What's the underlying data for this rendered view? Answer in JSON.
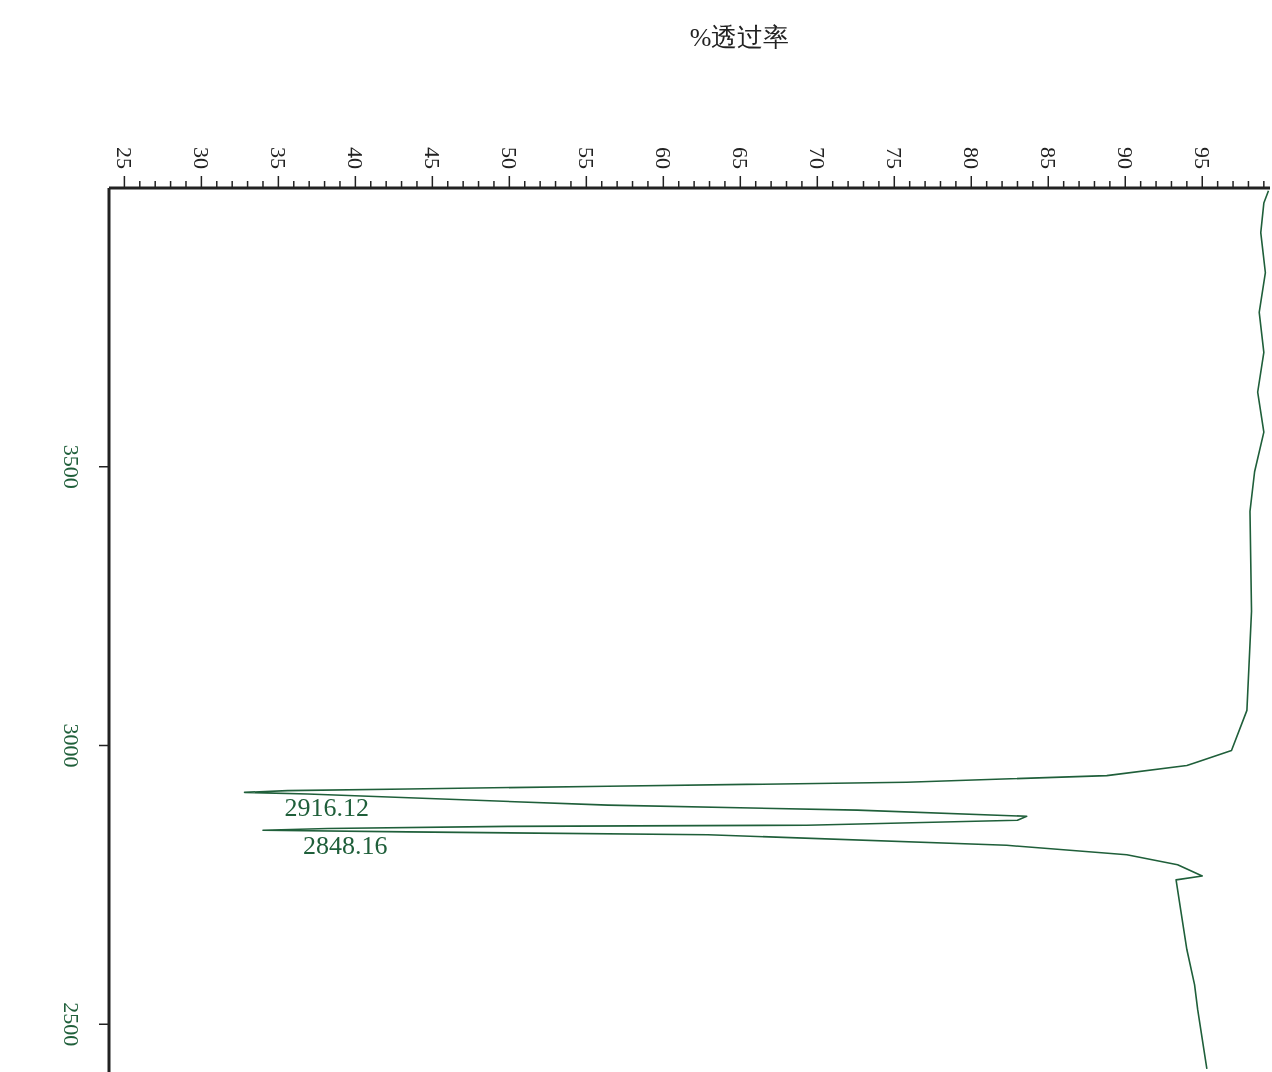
{
  "chart_data": {
    "type": "line",
    "xlabel": "%透过率",
    "xlim": [
      24,
      99.4
    ],
    "ylim": [
      2400,
      4000
    ],
    "xticks": [
      25,
      {
        "value": 26,
        "label": null
      },
      {
        "value": 27,
        "label": null
      },
      {
        "value": 28,
        "label": null
      },
      {
        "value": 29,
        "label": null
      },
      30,
      {
        "value": 31,
        "label": null
      },
      {
        "value": 32,
        "label": null
      },
      {
        "value": 33,
        "label": null
      },
      {
        "value": 34,
        "label": null
      },
      35,
      {
        "value": 36,
        "label": null
      },
      {
        "value": 37,
        "label": null
      },
      {
        "value": 38,
        "label": null
      },
      {
        "value": 39,
        "label": null
      },
      40,
      {
        "value": 41,
        "label": null
      },
      {
        "value": 42,
        "label": null
      },
      {
        "value": 43,
        "label": null
      },
      {
        "value": 44,
        "label": null
      },
      45,
      {
        "value": 46,
        "label": null
      },
      {
        "value": 47,
        "label": null
      },
      {
        "value": 48,
        "label": null
      },
      {
        "value": 49,
        "label": null
      },
      50,
      {
        "value": 51,
        "label": null
      },
      {
        "value": 52,
        "label": null
      },
      {
        "value": 53,
        "label": null
      },
      {
        "value": 54,
        "label": null
      },
      55,
      {
        "value": 56,
        "label": null
      },
      {
        "value": 57,
        "label": null
      },
      {
        "value": 58,
        "label": null
      },
      {
        "value": 59,
        "label": null
      },
      60,
      {
        "value": 61,
        "label": null
      },
      {
        "value": 62,
        "label": null
      },
      {
        "value": 63,
        "label": null
      },
      {
        "value": 64,
        "label": null
      },
      65,
      {
        "value": 66,
        "label": null
      },
      {
        "value": 67,
        "label": null
      },
      {
        "value": 68,
        "label": null
      },
      {
        "value": 69,
        "label": null
      },
      70,
      {
        "value": 71,
        "label": null
      },
      {
        "value": 72,
        "label": null
      },
      {
        "value": 73,
        "label": null
      },
      {
        "value": 74,
        "label": null
      },
      75,
      {
        "value": 76,
        "label": null
      },
      {
        "value": 77,
        "label": null
      },
      {
        "value": 78,
        "label": null
      },
      {
        "value": 79,
        "label": null
      },
      80,
      {
        "value": 81,
        "label": null
      },
      {
        "value": 82,
        "label": null
      },
      {
        "value": 83,
        "label": null
      },
      {
        "value": 84,
        "label": null
      },
      85,
      {
        "value": 86,
        "label": null
      },
      {
        "value": 87,
        "label": null
      },
      {
        "value": 88,
        "label": null
      },
      {
        "value": 89,
        "label": null
      },
      90,
      {
        "value": 91,
        "label": null
      },
      {
        "value": 92,
        "label": null
      },
      {
        "value": 93,
        "label": null
      },
      {
        "value": 94,
        "label": null
      },
      95,
      {
        "value": 96,
        "label": null
      },
      {
        "value": 97,
        "label": null
      },
      {
        "value": 98,
        "label": null
      },
      {
        "value": 99,
        "label": null
      }
    ],
    "yticks": [
      2500,
      3000,
      3500
    ],
    "series": [
      {
        "color": "#1f5f3a",
        "x": [
          99.3,
          99.0,
          98.8,
          99.1,
          98.7,
          99.0,
          98.6,
          99.0,
          98.4,
          98.1,
          98.2,
          97.9,
          96.9,
          94.0,
          88.8,
          75.8,
          56.4,
          43.4,
          35.6,
          32.8,
          36.9,
          56.4,
          72.6,
          83.6,
          83.0,
          69.3,
          49.9,
          38.2,
          34.0,
          43.4,
          62.9,
          82.3,
          90.1,
          93.4,
          95.0,
          93.3,
          93.6,
          94.0,
          94.5,
          94.7,
          95.3
        ],
        "values": [
          3995,
          3973,
          3920,
          3848,
          3777,
          3705,
          3634,
          3562,
          3491,
          3420,
          3241,
          3063,
          2991,
          2964,
          2946,
          2934,
          2927,
          2922,
          2919,
          2916,
          2913,
          2893,
          2884,
          2873,
          2866,
          2857,
          2855,
          2851,
          2848,
          2845,
          2840,
          2821,
          2804,
          2786,
          2766,
          2759,
          2705,
          2634,
          2571,
          2527,
          2420
        ]
      }
    ],
    "annotations": [
      {
        "text": "2916.12",
        "x": 32.8,
        "y": 2916
      },
      {
        "text": "2848.16",
        "x": 34.0,
        "y": 2848
      }
    ]
  }
}
